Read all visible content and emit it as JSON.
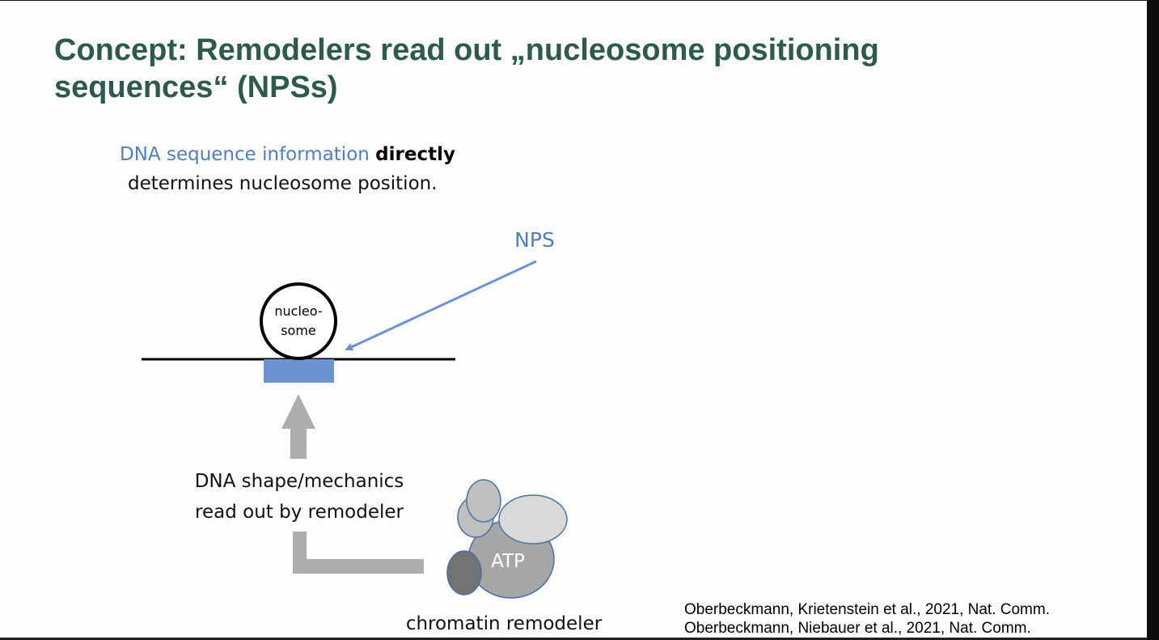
{
  "slide": {
    "title": "Concept: Remodelers read out „nucleosome positioning sequences“ (NPSs)",
    "statement": {
      "blue_part": "DNA sequence information",
      "bold_part": "directly",
      "rest": "determines nucleosome position."
    },
    "diagram": {
      "nps_label": "NPS",
      "nucleosome_label_line1": "nucleo-",
      "nucleosome_label_line2": "some",
      "readout_label_line1": "DNA shape/mechanics",
      "readout_label_line2": "read out by remodeler",
      "atp_label": "ATP",
      "remodeler_label": "chromatin remodeler"
    },
    "references": [
      "Oberbeckmann, Krietenstein et al., 2021, Nat. Comm.",
      "Oberbeckmann, Niebauer et al., 2021, Nat. Comm."
    ],
    "colors": {
      "title": "#2e5a4a",
      "accent_blue": "#4f7fbd",
      "nps_box": "#6a94d2",
      "gray_arrow": "#adadad",
      "remodeler_main": "#a6a6a6",
      "remodeler_light": "#d9d9d9",
      "remodeler_mid": "#bfbfbf",
      "remodeler_dark": "#737373",
      "remodeler_outline": "#4a6fa5"
    }
  }
}
